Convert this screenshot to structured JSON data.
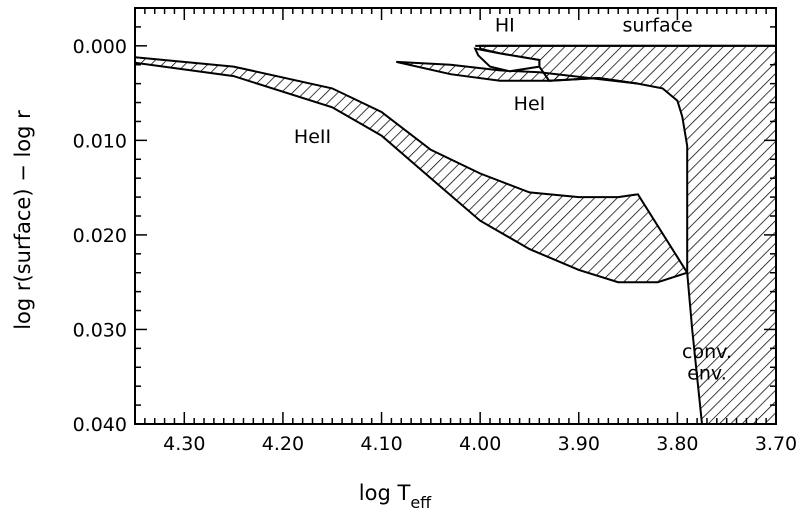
{
  "chart_data": {
    "type": "area",
    "xlabel": "log T",
    "xlabel_sub": "eff",
    "ylabel": "log r(surface) − log r",
    "xlim": [
      4.35,
      3.7
    ],
    "ylim": [
      0.04,
      -0.004
    ],
    "x_ticks": [
      "4.30",
      "4.20",
      "4.10",
      "4.00",
      "3.90",
      "3.80",
      "3.70"
    ],
    "x_tick_values": [
      4.3,
      4.2,
      4.1,
      4.0,
      3.9,
      3.8,
      3.7
    ],
    "y_ticks": [
      "0.000",
      "0.010",
      "0.020",
      "0.030",
      "0.040"
    ],
    "y_tick_values": [
      0.0,
      0.01,
      0.02,
      0.03,
      0.04
    ],
    "hatched": true,
    "regions": [
      {
        "label": "HeII",
        "upper": [
          [
            4.35,
            0.0012
          ],
          [
            4.25,
            0.0022
          ],
          [
            4.15,
            0.0045
          ],
          [
            4.1,
            0.007
          ],
          [
            4.05,
            0.011
          ],
          [
            4.0,
            0.0135
          ],
          [
            3.95,
            0.0155
          ],
          [
            3.9,
            0.016
          ],
          [
            3.86,
            0.016
          ],
          [
            3.84,
            0.0157
          ]
        ],
        "lower": [
          [
            4.35,
            0.0018
          ],
          [
            4.25,
            0.0032
          ],
          [
            4.15,
            0.0065
          ],
          [
            4.1,
            0.0095
          ],
          [
            4.05,
            0.014
          ],
          [
            4.0,
            0.0185
          ],
          [
            3.95,
            0.0215
          ],
          [
            3.9,
            0.0237
          ],
          [
            3.86,
            0.025
          ],
          [
            3.82,
            0.025
          ],
          [
            3.79,
            0.024
          ]
        ]
      },
      {
        "label": "HeI",
        "upper": [
          [
            4.085,
            0.0017
          ],
          [
            4.03,
            0.002
          ],
          [
            3.98,
            0.0026
          ],
          [
            3.94,
            0.0028
          ]
        ],
        "lower": [
          [
            4.085,
            0.0017
          ],
          [
            4.03,
            0.003
          ],
          [
            3.98,
            0.0037
          ],
          [
            3.93,
            0.0037
          ],
          [
            3.88,
            0.0034
          ],
          [
            3.84,
            0.004
          ]
        ]
      },
      {
        "label": "HI",
        "points": [
          [
            4.005,
            0.0003
          ],
          [
            3.98,
            0.0008
          ],
          [
            3.94,
            0.0015
          ],
          [
            3.94,
            0.0022
          ],
          [
            3.97,
            0.0027
          ],
          [
            3.99,
            0.0022
          ],
          [
            4.002,
            0.001
          ]
        ]
      },
      {
        "label": "conv. env.",
        "bounds_note": "surface at 0.000 from 4.00 to 3.70; inner boundary from (3.84,0.0040) to (3.79,0.0106) to (3.79,0.0240) to (3.775,0.040)"
      }
    ],
    "annotations": [
      {
        "text": "HI",
        "x": 3.975,
        "y": -0.0015
      },
      {
        "text": "surface",
        "x": 3.82,
        "y": -0.0015
      },
      {
        "text": "HeI",
        "x": 3.95,
        "y": 0.0068
      },
      {
        "text": "HeII",
        "x": 4.17,
        "y": 0.0103
      },
      {
        "text": "conv.",
        "x": 3.77,
        "y": 0.033
      },
      {
        "text": "env.",
        "x": 3.77,
        "y": 0.0353
      }
    ]
  }
}
